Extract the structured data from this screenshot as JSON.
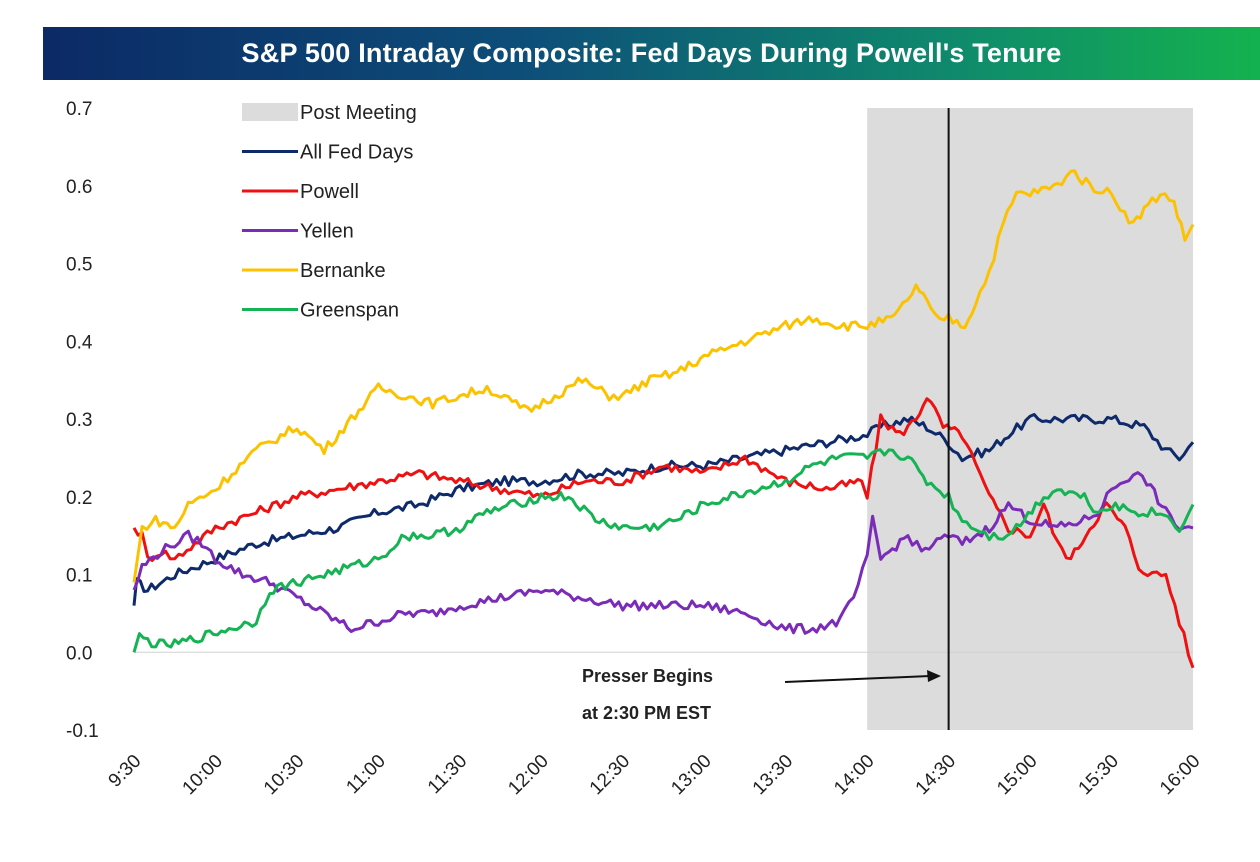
{
  "chart_data": {
    "type": "line",
    "title": "S&P 500 Intraday Composite: Fed Days During Powell's Tenure",
    "xlabel": "",
    "ylabel": "",
    "x_ticks": [
      "9:30",
      "10:00",
      "10:30",
      "11:00",
      "11:30",
      "12:00",
      "12:30",
      "13:00",
      "13:30",
      "14:00",
      "14:30",
      "15:00",
      "15:30",
      "16:00"
    ],
    "x_range_minutes": [
      0,
      390
    ],
    "ylim": [
      -0.1,
      0.7
    ],
    "y_ticks": [
      "0.7",
      "0.6",
      "0.5",
      "0.4",
      "0.3",
      "0.2",
      "0.1",
      "0.0",
      "-0.1"
    ],
    "shaded_region": {
      "label": "Post Meeting",
      "x_start_minutes": 270,
      "x_end_minutes": 390,
      "color": "#dcdcdc"
    },
    "vline_minutes": 300,
    "annotation": {
      "line1": "Presser Begins",
      "line2": "at 2:30 PM EST"
    },
    "legend": [
      "Post Meeting",
      "All Fed Days",
      "Powell",
      "Yellen",
      "Bernanke",
      "Greenspan"
    ],
    "series": [
      {
        "name": "All Fed Days",
        "color": "#0e2a6b",
        "points": [
          [
            0,
            0.06
          ],
          [
            1,
            0.09
          ],
          [
            5,
            0.08
          ],
          [
            15,
            0.1
          ],
          [
            30,
            0.12
          ],
          [
            45,
            0.14
          ],
          [
            60,
            0.15
          ],
          [
            75,
            0.16
          ],
          [
            90,
            0.18
          ],
          [
            105,
            0.19
          ],
          [
            120,
            0.21
          ],
          [
            135,
            0.22
          ],
          [
            150,
            0.22
          ],
          [
            165,
            0.23
          ],
          [
            180,
            0.23
          ],
          [
            195,
            0.24
          ],
          [
            210,
            0.24
          ],
          [
            225,
            0.25
          ],
          [
            240,
            0.26
          ],
          [
            255,
            0.27
          ],
          [
            270,
            0.28
          ],
          [
            275,
            0.29
          ],
          [
            285,
            0.3
          ],
          [
            292,
            0.29
          ],
          [
            300,
            0.27
          ],
          [
            305,
            0.25
          ],
          [
            315,
            0.26
          ],
          [
            322,
            0.28
          ],
          [
            330,
            0.3
          ],
          [
            345,
            0.3
          ],
          [
            360,
            0.3
          ],
          [
            372,
            0.29
          ],
          [
            380,
            0.26
          ],
          [
            385,
            0.25
          ],
          [
            390,
            0.27
          ]
        ]
      },
      {
        "name": "Powell",
        "color": "#ee1111",
        "points": [
          [
            0,
            0.16
          ],
          [
            3,
            0.15
          ],
          [
            5,
            0.12
          ],
          [
            10,
            0.13
          ],
          [
            15,
            0.12
          ],
          [
            30,
            0.16
          ],
          [
            45,
            0.18
          ],
          [
            60,
            0.2
          ],
          [
            75,
            0.21
          ],
          [
            90,
            0.22
          ],
          [
            105,
            0.23
          ],
          [
            120,
            0.22
          ],
          [
            135,
            0.21
          ],
          [
            150,
            0.2
          ],
          [
            165,
            0.22
          ],
          [
            180,
            0.22
          ],
          [
            195,
            0.24
          ],
          [
            210,
            0.23
          ],
          [
            225,
            0.25
          ],
          [
            240,
            0.22
          ],
          [
            255,
            0.21
          ],
          [
            268,
            0.22
          ],
          [
            270,
            0.2
          ],
          [
            275,
            0.3
          ],
          [
            282,
            0.28
          ],
          [
            288,
            0.3
          ],
          [
            292,
            0.33
          ],
          [
            298,
            0.29
          ],
          [
            305,
            0.28
          ],
          [
            310,
            0.24
          ],
          [
            315,
            0.2
          ],
          [
            322,
            0.16
          ],
          [
            330,
            0.15
          ],
          [
            335,
            0.19
          ],
          [
            340,
            0.14
          ],
          [
            345,
            0.12
          ],
          [
            352,
            0.16
          ],
          [
            358,
            0.19
          ],
          [
            365,
            0.16
          ],
          [
            370,
            0.11
          ],
          [
            375,
            0.1
          ],
          [
            380,
            0.1
          ],
          [
            385,
            0.04
          ],
          [
            390,
            -0.02
          ]
        ]
      },
      {
        "name": "Yellen",
        "color": "#7a2cb8",
        "points": [
          [
            0,
            0.08
          ],
          [
            3,
            0.11
          ],
          [
            10,
            0.13
          ],
          [
            15,
            0.14
          ],
          [
            20,
            0.15
          ],
          [
            25,
            0.14
          ],
          [
            30,
            0.12
          ],
          [
            40,
            0.1
          ],
          [
            50,
            0.09
          ],
          [
            60,
            0.07
          ],
          [
            70,
            0.05
          ],
          [
            80,
            0.03
          ],
          [
            90,
            0.04
          ],
          [
            100,
            0.05
          ],
          [
            110,
            0.05
          ],
          [
            120,
            0.06
          ],
          [
            135,
            0.07
          ],
          [
            150,
            0.08
          ],
          [
            165,
            0.07
          ],
          [
            180,
            0.06
          ],
          [
            195,
            0.06
          ],
          [
            210,
            0.06
          ],
          [
            225,
            0.05
          ],
          [
            240,
            0.03
          ],
          [
            250,
            0.03
          ],
          [
            260,
            0.04
          ],
          [
            265,
            0.07
          ],
          [
            270,
            0.12
          ],
          [
            272,
            0.17
          ],
          [
            275,
            0.12
          ],
          [
            285,
            0.15
          ],
          [
            290,
            0.13
          ],
          [
            300,
            0.15
          ],
          [
            305,
            0.14
          ],
          [
            315,
            0.16
          ],
          [
            322,
            0.19
          ],
          [
            330,
            0.17
          ],
          [
            340,
            0.16
          ],
          [
            350,
            0.17
          ],
          [
            355,
            0.18
          ],
          [
            360,
            0.21
          ],
          [
            368,
            0.23
          ],
          [
            373,
            0.22
          ],
          [
            380,
            0.18
          ],
          [
            385,
            0.16
          ],
          [
            390,
            0.16
          ]
        ]
      },
      {
        "name": "Bernanke",
        "color": "#fcc200",
        "points": [
          [
            0,
            0.09
          ],
          [
            3,
            0.16
          ],
          [
            8,
            0.17
          ],
          [
            15,
            0.16
          ],
          [
            20,
            0.19
          ],
          [
            30,
            0.21
          ],
          [
            45,
            0.26
          ],
          [
            60,
            0.29
          ],
          [
            70,
            0.26
          ],
          [
            80,
            0.3
          ],
          [
            90,
            0.34
          ],
          [
            100,
            0.33
          ],
          [
            110,
            0.32
          ],
          [
            120,
            0.33
          ],
          [
            130,
            0.34
          ],
          [
            135,
            0.33
          ],
          [
            145,
            0.31
          ],
          [
            155,
            0.33
          ],
          [
            165,
            0.35
          ],
          [
            175,
            0.33
          ],
          [
            180,
            0.33
          ],
          [
            190,
            0.35
          ],
          [
            200,
            0.36
          ],
          [
            210,
            0.38
          ],
          [
            225,
            0.4
          ],
          [
            240,
            0.42
          ],
          [
            250,
            0.43
          ],
          [
            260,
            0.42
          ],
          [
            270,
            0.42
          ],
          [
            280,
            0.43
          ],
          [
            288,
            0.47
          ],
          [
            292,
            0.45
          ],
          [
            295,
            0.43
          ],
          [
            300,
            0.43
          ],
          [
            306,
            0.42
          ],
          [
            310,
            0.45
          ],
          [
            315,
            0.49
          ],
          [
            320,
            0.55
          ],
          [
            325,
            0.59
          ],
          [
            330,
            0.59
          ],
          [
            340,
            0.6
          ],
          [
            345,
            0.62
          ],
          [
            352,
            0.6
          ],
          [
            360,
            0.59
          ],
          [
            368,
            0.55
          ],
          [
            372,
            0.57
          ],
          [
            378,
            0.59
          ],
          [
            383,
            0.58
          ],
          [
            387,
            0.53
          ],
          [
            390,
            0.55
          ]
        ]
      },
      {
        "name": "Greenspan",
        "color": "#16b354",
        "points": [
          [
            0,
            0.0
          ],
          [
            2,
            0.02
          ],
          [
            8,
            0.01
          ],
          [
            15,
            0.01
          ],
          [
            25,
            0.02
          ],
          [
            35,
            0.03
          ],
          [
            45,
            0.04
          ],
          [
            50,
            0.08
          ],
          [
            60,
            0.09
          ],
          [
            70,
            0.1
          ],
          [
            80,
            0.11
          ],
          [
            90,
            0.12
          ],
          [
            100,
            0.15
          ],
          [
            110,
            0.15
          ],
          [
            120,
            0.16
          ],
          [
            130,
            0.18
          ],
          [
            140,
            0.19
          ],
          [
            150,
            0.2
          ],
          [
            160,
            0.2
          ],
          [
            170,
            0.17
          ],
          [
            180,
            0.16
          ],
          [
            190,
            0.16
          ],
          [
            200,
            0.17
          ],
          [
            210,
            0.19
          ],
          [
            220,
            0.2
          ],
          [
            230,
            0.21
          ],
          [
            240,
            0.22
          ],
          [
            250,
            0.24
          ],
          [
            260,
            0.25
          ],
          [
            270,
            0.25
          ],
          [
            278,
            0.26
          ],
          [
            285,
            0.25
          ],
          [
            292,
            0.22
          ],
          [
            300,
            0.2
          ],
          [
            305,
            0.17
          ],
          [
            310,
            0.16
          ],
          [
            315,
            0.15
          ],
          [
            320,
            0.15
          ],
          [
            325,
            0.16
          ],
          [
            335,
            0.2
          ],
          [
            340,
            0.21
          ],
          [
            350,
            0.2
          ],
          [
            355,
            0.18
          ],
          [
            360,
            0.19
          ],
          [
            370,
            0.18
          ],
          [
            378,
            0.18
          ],
          [
            385,
            0.16
          ],
          [
            390,
            0.19
          ]
        ]
      }
    ]
  }
}
